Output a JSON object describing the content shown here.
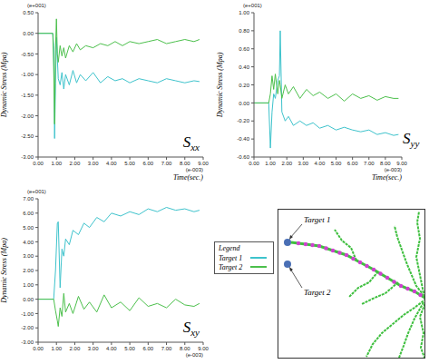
{
  "chart_data": [
    {
      "type": "line",
      "title": "Sxx",
      "x_label": "Time(sec.)",
      "y_label": "Dynamic Stress (Mpa)",
      "annotations": {
        "y": "(e+001)",
        "x": "(e-003)"
      },
      "x": [
        0,
        0.8,
        0.85,
        0.9,
        0.95,
        1.0,
        1.05,
        1.1,
        1.2,
        1.3,
        1.4,
        1.5,
        1.7,
        1.9,
        2.1,
        2.3,
        2.6,
        3.0,
        3.4,
        3.8,
        4.2,
        4.6,
        5.0,
        5.5,
        6.0,
        6.5,
        7.0,
        7.5,
        8.0,
        8.5,
        8.8
      ],
      "series": [
        {
          "name": "Target 1",
          "color": "#3ec3cc",
          "values": [
            0,
            0,
            -0.3,
            -2.55,
            -1.2,
            -0.1,
            -0.6,
            -1.1,
            -1.25,
            -0.95,
            -1.35,
            -1.0,
            -1.25,
            -0.9,
            -1.2,
            -1.0,
            -1.15,
            -0.95,
            -1.2,
            -1.05,
            -1.15,
            -1.1,
            -1.2,
            -1.1,
            -1.15,
            -1.2,
            -1.1,
            -1.15,
            -1.2,
            -1.15,
            -1.17
          ]
        },
        {
          "name": "Target 2",
          "color": "#4cc04c",
          "values": [
            0,
            0,
            -0.8,
            -2.2,
            -0.4,
            0.35,
            -0.5,
            -0.7,
            -0.3,
            -0.55,
            -0.35,
            -0.6,
            -0.3,
            -0.45,
            -0.25,
            -0.4,
            -0.3,
            -0.35,
            -0.25,
            -0.3,
            -0.2,
            -0.3,
            -0.2,
            -0.25,
            -0.2,
            -0.15,
            -0.25,
            -0.2,
            -0.15,
            -0.2,
            -0.15
          ]
        }
      ],
      "xlim": [
        0,
        9
      ],
      "xticks": [
        {
          "value": 0,
          "label": "0.00"
        },
        {
          "value": 1,
          "label": "1.00"
        },
        {
          "value": 2,
          "label": "2.00"
        },
        {
          "value": 3,
          "label": "3.00"
        },
        {
          "value": 4,
          "label": "4.00"
        },
        {
          "value": 5,
          "label": "5.00"
        },
        {
          "value": 6,
          "label": "6.00"
        },
        {
          "value": 7,
          "label": "7.00"
        },
        {
          "value": 8,
          "label": "8.00"
        },
        {
          "value": 9,
          "label": "9.00"
        }
      ],
      "ylim": [
        -3,
        0.5
      ],
      "yticks": [
        {
          "value": -3,
          "label": "-3.00"
        },
        {
          "value": -2.5,
          "label": "-2.50"
        },
        {
          "value": -2,
          "label": "-2.00"
        },
        {
          "value": -1.5,
          "label": "-1.50"
        },
        {
          "value": -1,
          "label": "-1.00"
        },
        {
          "value": -0.5,
          "label": "-0.50"
        },
        {
          "value": 0,
          "label": "0.00"
        },
        {
          "value": 0.5,
          "label": "0.50"
        }
      ]
    },
    {
      "type": "line",
      "title": "Syy",
      "x_label": "Time(sec.)",
      "y_label": "Dynamic Stress (Mpa)",
      "annotations": {
        "y": "(e+001)",
        "x": "(e-003)"
      },
      "x": [
        0,
        0.9,
        1.0,
        1.1,
        1.2,
        1.3,
        1.45,
        1.55,
        1.6,
        1.7,
        1.9,
        2.1,
        2.4,
        2.8,
        3.2,
        3.6,
        4.0,
        4.5,
        5.0,
        5.5,
        6.0,
        6.5,
        7.0,
        7.5,
        8.0,
        8.5,
        8.8
      ],
      "series": [
        {
          "name": "Target 1",
          "color": "#3ec3cc",
          "values": [
            0,
            0,
            -0.5,
            -0.1,
            0.1,
            0.05,
            0.25,
            0.3,
            0.8,
            -0.1,
            -0.2,
            -0.15,
            -0.25,
            -0.2,
            -0.25,
            -0.22,
            -0.28,
            -0.25,
            -0.3,
            -0.27,
            -0.3,
            -0.32,
            -0.3,
            -0.35,
            -0.33,
            -0.36,
            -0.35
          ]
        },
        {
          "name": "Target 2",
          "color": "#4cc04c",
          "values": [
            0,
            0,
            0.1,
            0.3,
            0.15,
            0.32,
            0.1,
            0.25,
            0.2,
            0.05,
            0.2,
            0.1,
            0.18,
            0.05,
            0.15,
            0.08,
            0.12,
            0.05,
            0.1,
            0.02,
            0.1,
            0.05,
            0.08,
            0.03,
            0.07,
            0.05,
            0.05
          ]
        }
      ],
      "xlim": [
        0,
        9
      ],
      "xticks": [
        {
          "value": 0,
          "label": "0.00"
        },
        {
          "value": 1,
          "label": "1.00"
        },
        {
          "value": 2,
          "label": "2.00"
        },
        {
          "value": 3,
          "label": "3.00"
        },
        {
          "value": 4,
          "label": "4.00"
        },
        {
          "value": 5,
          "label": "5.00"
        },
        {
          "value": 6,
          "label": "6.00"
        },
        {
          "value": 7,
          "label": "7.00"
        },
        {
          "value": 8,
          "label": "8.00"
        },
        {
          "value": 9,
          "label": "9.00"
        }
      ],
      "ylim": [
        -0.6,
        1.0
      ],
      "yticks": [
        {
          "value": -0.6,
          "label": "-0.60"
        },
        {
          "value": -0.4,
          "label": "-0.40"
        },
        {
          "value": -0.2,
          "label": "-0.20"
        },
        {
          "value": 0,
          "label": "0.00"
        },
        {
          "value": 0.2,
          "label": "0.20"
        },
        {
          "value": 0.4,
          "label": "0.40"
        },
        {
          "value": 0.6,
          "label": "0.60"
        },
        {
          "value": 0.8,
          "label": "0.80"
        },
        {
          "value": 1.0,
          "label": "1.00"
        }
      ]
    },
    {
      "type": "line",
      "title": "Sxy",
      "y_label": "Dynamic Stress (Mpa)",
      "annotations": {
        "y": "(e+001)",
        "x": "(e-003)"
      },
      "x": [
        0,
        0.85,
        0.95,
        1.05,
        1.1,
        1.2,
        1.3,
        1.4,
        1.5,
        1.7,
        1.9,
        2.2,
        2.5,
        2.8,
        3.2,
        3.6,
        4.0,
        4.5,
        5.0,
        5.5,
        6.0,
        6.5,
        7.0,
        7.5,
        8.0,
        8.5,
        8.8
      ],
      "series": [
        {
          "name": "Target 1",
          "color": "#3ec3cc",
          "values": [
            0,
            0,
            2.0,
            5.3,
            5.4,
            0.8,
            3.5,
            3.0,
            4.2,
            3.8,
            4.8,
            4.5,
            5.3,
            5.0,
            5.7,
            5.4,
            6.0,
            5.8,
            6.1,
            5.9,
            6.3,
            6.1,
            6.4,
            6.2,
            6.3,
            6.1,
            6.2
          ]
        },
        {
          "name": "Target 2",
          "color": "#4cc04c",
          "values": [
            0,
            0,
            -0.8,
            -1.5,
            -1.9,
            -0.6,
            -1.2,
            0.4,
            -0.9,
            -0.3,
            -1.0,
            0.2,
            -0.7,
            -0.2,
            -0.9,
            0.3,
            -0.6,
            -0.2,
            -0.8,
            0.1,
            -0.5,
            -0.3,
            -0.6,
            0.0,
            -0.4,
            -0.5,
            -0.3
          ]
        }
      ],
      "xlim": [
        0,
        9
      ],
      "xticks": [
        {
          "value": 0,
          "label": "0.00"
        },
        {
          "value": 1,
          "label": "1.00"
        },
        {
          "value": 2,
          "label": "2.00"
        },
        {
          "value": 3,
          "label": "3.00"
        },
        {
          "value": 4,
          "label": "4.00"
        },
        {
          "value": 5,
          "label": "5.00"
        },
        {
          "value": 6,
          "label": "6.00"
        },
        {
          "value": 7,
          "label": "7.00"
        },
        {
          "value": 8,
          "label": "8.00"
        },
        {
          "value": 9,
          "label": "9.00"
        }
      ],
      "ylim": [
        -3,
        7
      ],
      "yticks": [
        {
          "value": -3,
          "label": "-3.00"
        },
        {
          "value": -2,
          "label": "-2.00"
        },
        {
          "value": -1,
          "label": "-1.00"
        },
        {
          "value": 0,
          "label": "0.00"
        },
        {
          "value": 1,
          "label": "1.00"
        },
        {
          "value": 2,
          "label": "2.00"
        },
        {
          "value": 3,
          "label": "3.00"
        },
        {
          "value": 4,
          "label": "4.00"
        },
        {
          "value": 5,
          "label": "5.00"
        },
        {
          "value": 6,
          "label": "6.00"
        },
        {
          "value": 7,
          "label": "7.00"
        }
      ]
    }
  ],
  "legend_title": "Legend",
  "diagram": {
    "targets": [
      "Target 1",
      "Target 2"
    ]
  }
}
